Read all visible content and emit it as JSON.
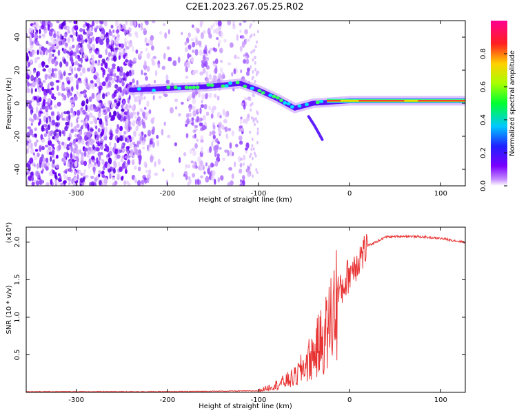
{
  "title": "C2E1.2023.267.05.25.R02",
  "chart_data": [
    {
      "type": "heatmap",
      "xlabel": "Height of straight line (km)",
      "ylabel": "Frequency (Hz)",
      "xlim": [
        -355,
        127
      ],
      "ylim": [
        -50,
        50
      ],
      "xticks": [
        -300,
        -200,
        -100,
        0,
        100
      ],
      "yticks": [
        -40,
        -20,
        0,
        20,
        40
      ],
      "colorbar": {
        "label": "Normalized spectral amplitude",
        "range": [
          0.0,
          1.0
        ],
        "ticks": [
          0.0,
          0.2,
          0.4,
          0.6,
          0.8
        ],
        "colormap": "rainbow (white-purple-blue-cyan-green-yellow-red-magenta)"
      },
      "ridge": {
        "x": [
          -240,
          -200,
          -160,
          -120,
          -100,
          -80,
          -60,
          -40,
          -25,
          0,
          50,
          100,
          127
        ],
        "y": [
          8,
          9,
          10,
          12,
          8,
          3,
          -3,
          0,
          0.5,
          1.5,
          1.5,
          1.5,
          1.5
        ]
      },
      "noise_region_x": [
        -355,
        -110
      ]
    },
    {
      "type": "line",
      "xlabel": "Height of straight line (km)",
      "ylabel": "SNR (10 * v/v)",
      "y_multiplier": "(x10⁴)",
      "xlim": [
        -355,
        127
      ],
      "ylim": [
        0,
        2.2
      ],
      "xticks": [
        -300,
        -200,
        -100,
        0,
        100
      ],
      "yticks": [
        0.5,
        1.0,
        1.5,
        2.0
      ],
      "color": "#e83232",
      "series": [
        {
          "x": [
            -355,
            -300,
            -200,
            -100,
            -80,
            -60,
            -40,
            -25,
            -15,
            0,
            20,
            40,
            60,
            80,
            90,
            100,
            110,
            127
          ],
          "values": [
            0.01,
            0.01,
            0.01,
            0.02,
            0.1,
            0.2,
            0.5,
            0.8,
            1.2,
            1.6,
            1.95,
            2.07,
            2.08,
            2.07,
            2.06,
            2.05,
            2.03,
            2.0
          ]
        }
      ]
    }
  ]
}
